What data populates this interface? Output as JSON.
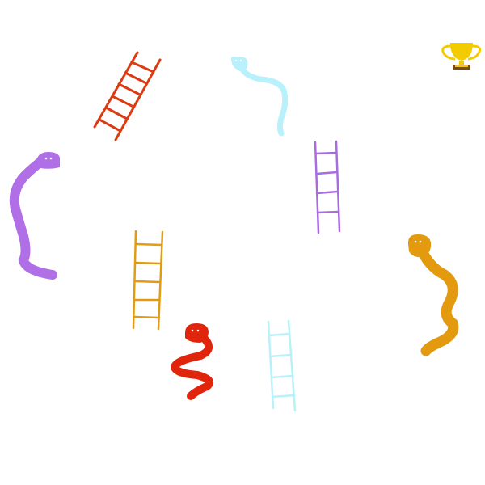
{
  "board": {
    "background": "#ffffff",
    "goal": {
      "icon": "trophy-icon",
      "color": "#f2cc00",
      "base_color": "#7a4a12"
    },
    "snakes": [
      {
        "id": "snake-light-blue",
        "color": "#b8f0fb"
      },
      {
        "id": "snake-purple",
        "color": "#b06fe6"
      },
      {
        "id": "snake-orange",
        "color": "#e39a0e"
      },
      {
        "id": "snake-red",
        "color": "#e0250c"
      }
    ],
    "ladders": [
      {
        "id": "ladder-red",
        "color": "#dc3b12"
      },
      {
        "id": "ladder-purple",
        "color": "#a86be0"
      },
      {
        "id": "ladder-orange",
        "color": "#e29c14"
      },
      {
        "id": "ladder-light-blue",
        "color": "#b9f1fa"
      }
    ]
  }
}
